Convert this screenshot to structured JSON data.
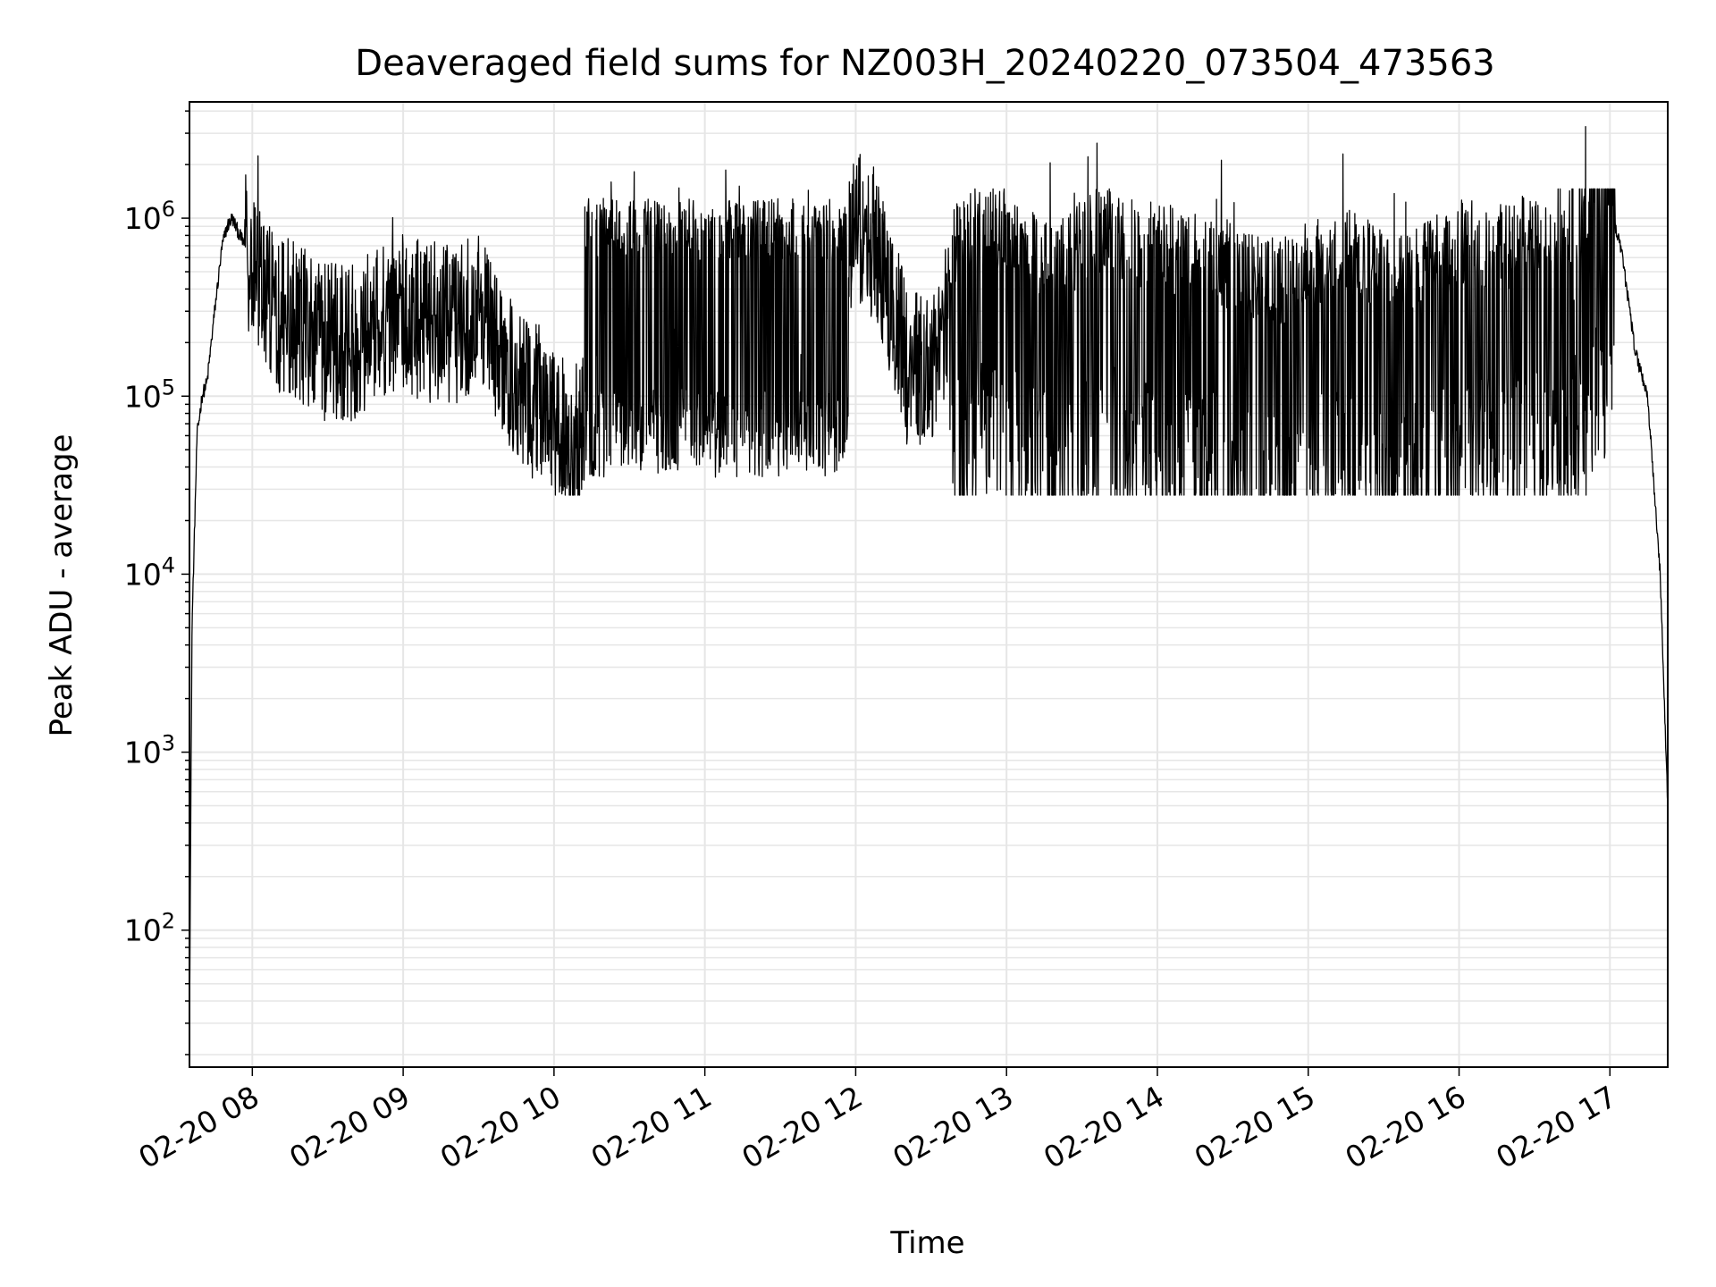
{
  "chart_data": {
    "type": "line",
    "title": "Deaveraged field sums for NZ003H_20240220_073504_473563",
    "xlabel": "Time",
    "ylabel": "Peak ADU - average",
    "yscale": "log",
    "xlim": [
      "2024-02-20 07:35",
      "2024-02-20 17:23"
    ],
    "ylim": [
      17,
      4500000
    ],
    "grid": "both",
    "colors": {
      "series": "#000000",
      "grid": "#e6e6e6",
      "axes": "#000000"
    },
    "x_ticks": [
      "02-20 08",
      "02-20 09",
      "02-20 10",
      "02-20 11",
      "02-20 12",
      "02-20 13",
      "02-20 14",
      "02-20 15",
      "02-20 16",
      "02-20 17"
    ],
    "y_ticks": [
      {
        "base": "10",
        "exp": "2",
        "value": 100
      },
      {
        "base": "10",
        "exp": "3",
        "value": 1000
      },
      {
        "base": "10",
        "exp": "4",
        "value": 10000
      },
      {
        "base": "10",
        "exp": "5",
        "value": 100000
      },
      {
        "base": "10",
        "exp": "6",
        "value": 1000000
      }
    ],
    "series": [
      {
        "x": [
          "07:35",
          "07:36",
          "07:38",
          "07:40",
          "07:42",
          "07:45",
          "07:48",
          "07:50",
          "07:52",
          "07:55",
          "08:00",
          "08:05",
          "08:10",
          "08:20",
          "08:30",
          "08:40",
          "08:50",
          "09:00",
          "09:10",
          "09:20",
          "09:30",
          "09:40",
          "09:50",
          "10:00",
          "10:10",
          "10:20",
          "10:30",
          "10:40",
          "10:50",
          "11:00",
          "11:10",
          "11:20",
          "11:30",
          "11:40",
          "11:50",
          "12:00",
          "12:05",
          "12:10",
          "12:20",
          "12:30",
          "12:40",
          "12:50",
          "13:00",
          "13:10",
          "13:20",
          "13:30",
          "13:40",
          "13:50",
          "14:00",
          "14:10",
          "14:20",
          "14:30",
          "14:40",
          "14:50",
          "15:00",
          "15:10",
          "15:20",
          "15:30",
          "15:40",
          "15:50",
          "16:00",
          "16:10",
          "16:20",
          "16:30",
          "16:40",
          "16:50",
          "17:00",
          "17:05",
          "17:10",
          "17:15",
          "17:20",
          "17:23"
        ],
        "y": [
          30,
          5000,
          60000,
          100000,
          120000,
          300000,
          700000,
          900000,
          1000000,
          800000,
          600000,
          400000,
          300000,
          250000,
          200000,
          200000,
          250000,
          300000,
          250000,
          250000,
          300000,
          150000,
          100000,
          70000,
          60000,
          55000,
          50000,
          45000,
          45000,
          50000,
          300000,
          400000,
          400000,
          350000,
          300000,
          900000,
          800000,
          600000,
          150000,
          150000,
          400000,
          500000,
          500000,
          400000,
          300000,
          400000,
          500000,
          400000,
          400000,
          350000,
          350000,
          300000,
          250000,
          250000,
          300000,
          350000,
          350000,
          300000,
          300000,
          350000,
          400000,
          400000,
          400000,
          450000,
          500000,
          600000,
          1200000,
          600000,
          180000,
          100000,
          10000,
          500
        ]
      }
    ]
  }
}
